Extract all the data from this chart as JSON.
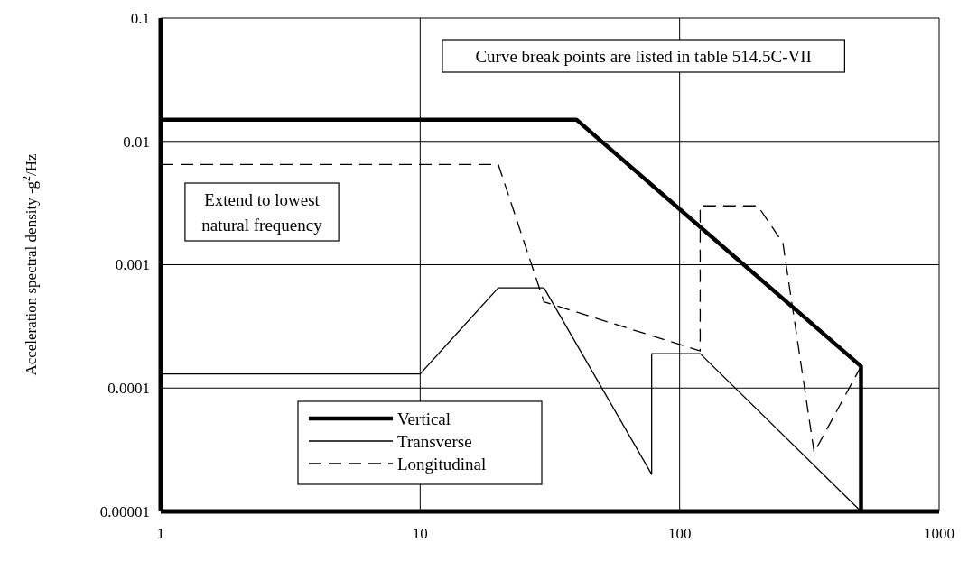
{
  "chart_data": {
    "type": "line",
    "ylabel": "Acceleration spectral density -g$^{2}$/Hz",
    "log": "xy",
    "xlim": [
      1,
      1000
    ],
    "ylim": [
      1e-05,
      0.1
    ],
    "xticks": [
      1,
      10,
      100,
      1000
    ],
    "yticks": [
      {
        "value": 1e-05,
        "label": "0.00001"
      },
      0.0001,
      0.001,
      0.01,
      0.1
    ],
    "grid": true,
    "legend": "bottom left",
    "annotations": [
      "Curve break points are listed in table 514.5C-VII",
      "Extend to lowest\nnatural frequency"
    ],
    "series": [
      {
        "name": "Vertical",
        "color": "#000000",
        "line_style": "solid",
        "x": [
          1,
          40,
          500,
          500
        ],
        "values": [
          0.015,
          0.015,
          0.00015,
          1e-05
        ]
      },
      {
        "name": "Transverse",
        "color": "#000000",
        "line_style": "solid",
        "x": [
          1,
          10,
          20,
          30,
          78,
          78,
          120,
          500
        ],
        "values": [
          0.00013,
          0.00013,
          0.00065,
          0.00065,
          2e-05,
          0.00019,
          0.00019,
          1e-05
        ]
      },
      {
        "name": "Longitudinal",
        "color": "#000000",
        "line_style": "dashed",
        "x": [
          1,
          20,
          30,
          120,
          120,
          200,
          250,
          330,
          500
        ],
        "values": [
          0.0065,
          0.0065,
          0.0005,
          0.0002,
          0.003,
          0.003,
          0.0015,
          3e-05,
          0.00015
        ]
      }
    ]
  }
}
